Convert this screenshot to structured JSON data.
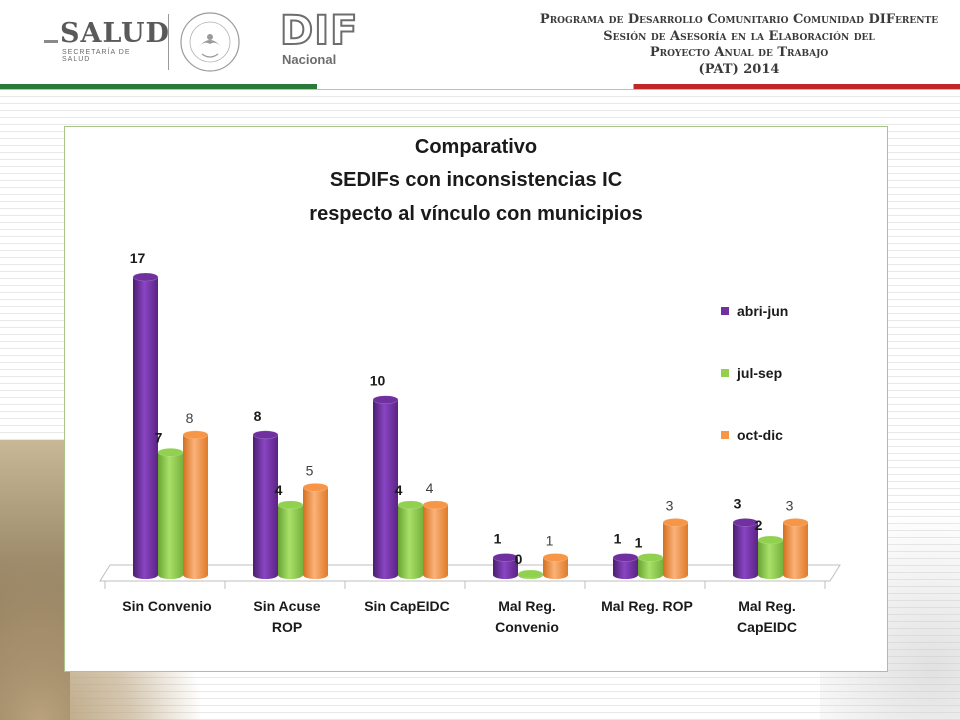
{
  "header": {
    "salud": "SALUD",
    "salud_sub": "SECRETARÍA DE SALUD",
    "dif": "DIF",
    "dif_sub": "Nacional",
    "program_lines": [
      "Programa de Desarrollo Comunitario Comunidad DIFerente",
      "Sesión de Asesoría en la Elaboración del",
      "Proyecto Anual de Trabajo",
      "(PAT) 2014"
    ]
  },
  "chart_data": {
    "type": "bar",
    "title_lines": [
      "Comparativo",
      "SEDIFs con inconsistencias IC",
      "respecto al vínculo con municipios"
    ],
    "categories": [
      [
        "Sin Convenio"
      ],
      [
        "Sin Acuse",
        "ROP"
      ],
      [
        "Sin CapEIDC"
      ],
      [
        "Mal Reg.",
        "Convenio"
      ],
      [
        "Mal Reg. ROP"
      ],
      [
        "Mal Reg.",
        "CapEIDC"
      ]
    ],
    "series": [
      {
        "name": "abri-jun",
        "color": "#7030a0",
        "values": [
          17,
          8,
          10,
          1,
          1,
          3
        ]
      },
      {
        "name": "jul-sep",
        "color": "#92d050",
        "values": [
          7,
          4,
          4,
          0,
          1,
          2
        ]
      },
      {
        "name": "oct-dic",
        "color": "#f79646",
        "values": [
          8,
          5,
          4,
          1,
          3,
          3
        ]
      }
    ],
    "ylim": [
      0,
      17
    ],
    "legend_position": "right",
    "grid": false
  }
}
